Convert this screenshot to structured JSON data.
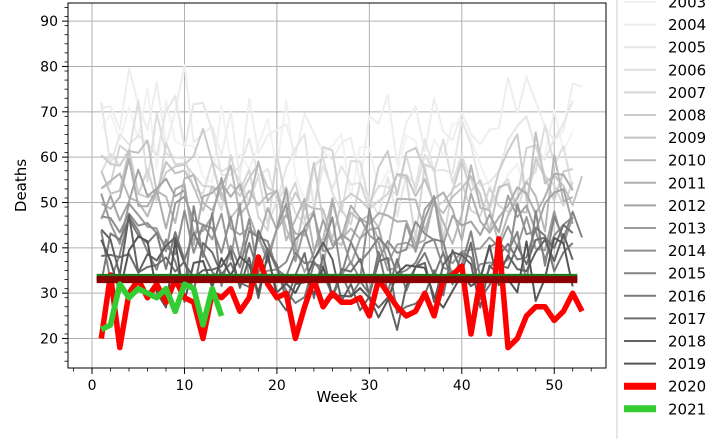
{
  "chart_data": {
    "type": "line",
    "title": "",
    "xlabel": "Week",
    "ylabel": "Deaths",
    "xlim": [
      -2.6,
      55.6
    ],
    "ylim": [
      13.5,
      94
    ],
    "x_ticks": [
      0,
      10,
      20,
      30,
      40,
      50
    ],
    "y_ticks": [
      20,
      30,
      40,
      50,
      60,
      70,
      80,
      90
    ],
    "grid": true,
    "legend_position": "right-outside",
    "series": [
      {
        "name": "2003",
        "color": "#f2f2f2",
        "weeks": 52,
        "level": 62,
        "spread": 11,
        "seed": 3
      },
      {
        "name": "2004",
        "color": "#eeeeee",
        "weeks": 53,
        "level": 68,
        "spread": 12,
        "seed": 4
      },
      {
        "name": "2005",
        "color": "#e6e6e6",
        "weeks": 52,
        "level": 60,
        "spread": 12,
        "seed": 5
      },
      {
        "name": "2006",
        "color": "#dedede",
        "weeks": 52,
        "level": 57,
        "spread": 11,
        "seed": 6
      },
      {
        "name": "2007",
        "color": "#d5d5d5",
        "weeks": 52,
        "level": 55,
        "spread": 11,
        "seed": 7
      },
      {
        "name": "2008",
        "color": "#cccccc",
        "weeks": 52,
        "level": 54,
        "spread": 11,
        "seed": 8
      },
      {
        "name": "2009",
        "color": "#c2c2c2",
        "weeks": 53,
        "level": 52,
        "spread": 11,
        "seed": 9
      },
      {
        "name": "2010",
        "color": "#b8b8b8",
        "weeks": 52,
        "level": 50,
        "spread": 10,
        "seed": 10
      },
      {
        "name": "2011",
        "color": "#aeaeae",
        "weeks": 52,
        "level": 48,
        "spread": 10,
        "seed": 11
      },
      {
        "name": "2012",
        "color": "#a4a4a4",
        "weeks": 52,
        "level": 46,
        "spread": 10,
        "seed": 12
      },
      {
        "name": "2013",
        "color": "#9a9a9a",
        "weeks": 52,
        "level": 44,
        "spread": 10,
        "seed": 13
      },
      {
        "name": "2014",
        "color": "#8e8e8e",
        "weeks": 52,
        "level": 41,
        "spread": 9,
        "seed": 14
      },
      {
        "name": "2015",
        "color": "#848484",
        "weeks": 53,
        "level": 39,
        "spread": 9,
        "seed": 15
      },
      {
        "name": "2016",
        "color": "#7a7a7a",
        "weeks": 52,
        "level": 37,
        "spread": 9,
        "seed": 16
      },
      {
        "name": "2017",
        "color": "#6e6e6e",
        "weeks": 52,
        "level": 36,
        "spread": 9,
        "seed": 17
      },
      {
        "name": "2018",
        "color": "#626262",
        "weeks": 52,
        "level": 35,
        "spread": 9,
        "seed": 18
      },
      {
        "name": "2019",
        "color": "#555555",
        "weeks": 52,
        "level": 34,
        "spread": 9,
        "seed": 19
      },
      {
        "name": "2020",
        "color": "#ff0000",
        "weight": "bold",
        "x": [
          1,
          2,
          3,
          4,
          5,
          6,
          7,
          8,
          9,
          10,
          11,
          12,
          13,
          14,
          15,
          16,
          17,
          18,
          19,
          20,
          21,
          22,
          23,
          24,
          25,
          26,
          27,
          28,
          29,
          30,
          31,
          32,
          33,
          34,
          35,
          36,
          37,
          38,
          39,
          40,
          41,
          42,
          43,
          44,
          45,
          46,
          47,
          48,
          49,
          50,
          51,
          52,
          53
        ],
        "y": [
          20,
          34,
          18,
          30,
          33,
          29,
          32,
          28,
          33,
          29,
          28,
          20,
          30,
          29,
          31,
          26,
          29,
          38,
          32,
          29,
          30,
          20,
          27,
          33,
          27,
          30,
          28,
          28,
          29,
          25,
          33,
          30,
          27,
          25,
          26,
          30,
          25,
          33,
          34,
          36,
          21,
          33,
          21,
          42,
          18,
          20,
          25,
          27,
          27,
          24,
          26,
          30,
          26
        ]
      },
      {
        "name": "2021",
        "color": "#33cc33",
        "weight": "bold",
        "x": [
          1,
          2,
          3,
          4,
          5,
          6,
          7,
          8,
          9,
          10,
          11,
          12,
          13,
          14
        ],
        "y": [
          22,
          23,
          32,
          29,
          31,
          30,
          29,
          31,
          26,
          32,
          31,
          23,
          31,
          25
        ]
      }
    ],
    "reference_lines": [
      {
        "color": "#1f7a1f",
        "y": 33.5,
        "x": [
          0.5,
          52.5
        ]
      },
      {
        "color": "#8b0000",
        "y": 33.0,
        "x": [
          0.5,
          52.5
        ]
      }
    ]
  }
}
